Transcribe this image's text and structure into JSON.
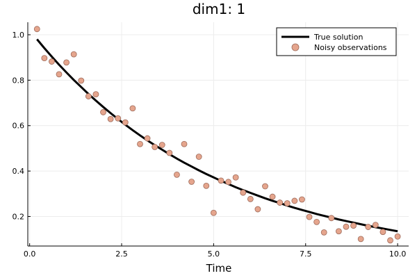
{
  "colors": {
    "line": "#000000",
    "marker_fill": "#e5a58d",
    "marker_stroke": "#9c6a5a",
    "grid": "#ececec",
    "axis": "#000000"
  },
  "chart_data": {
    "type": "scatter",
    "title": "dim1: 1",
    "xlabel": "Time",
    "ylabel": "",
    "xlim": [
      -0.05,
      10.3
    ],
    "ylim": [
      0.07,
      1.055
    ],
    "xticks": [
      0.0,
      2.5,
      5.0,
      7.5,
      10.0
    ],
    "xtick_labels": [
      "0.0",
      "2.5",
      "5.0",
      "7.5",
      "10.0"
    ],
    "yticks": [
      0.2,
      0.4,
      0.6,
      0.8,
      1.0
    ],
    "ytick_labels": [
      "0.2",
      "0.4",
      "0.6",
      "0.8",
      "1.0"
    ],
    "grid": true,
    "legend_position": "top-right",
    "series": [
      {
        "name": "True solution",
        "kind": "line",
        "x": [
          0.2,
          0.4,
          0.6,
          0.8,
          1.0,
          1.2,
          1.4,
          1.6,
          1.8,
          2.0,
          2.2,
          2.4,
          2.6,
          2.8,
          3.0,
          3.2,
          3.4,
          3.6,
          3.8,
          4.0,
          4.2,
          4.4,
          4.6,
          4.8,
          5.0,
          5.2,
          5.4,
          5.6,
          5.8,
          6.0,
          6.2,
          6.4,
          6.6,
          6.8,
          7.0,
          7.2,
          7.4,
          7.6,
          7.8,
          8.0,
          8.2,
          8.4,
          8.6,
          8.8,
          9.0,
          9.2,
          9.4,
          9.6,
          9.8,
          10.0
        ],
        "y": [
          0.98,
          0.941,
          0.904,
          0.868,
          0.834,
          0.801,
          0.77,
          0.739,
          0.71,
          0.682,
          0.655,
          0.629,
          0.604,
          0.58,
          0.557,
          0.535,
          0.514,
          0.494,
          0.474,
          0.455,
          0.437,
          0.42,
          0.403,
          0.387,
          0.372,
          0.357,
          0.343,
          0.329,
          0.316,
          0.304,
          0.292,
          0.28,
          0.269,
          0.259,
          0.248,
          0.238,
          0.229,
          0.22,
          0.211,
          0.203,
          0.195,
          0.187,
          0.18,
          0.173,
          0.166,
          0.159,
          0.153,
          0.147,
          0.141,
          0.135
        ]
      },
      {
        "name": "Noisy observations",
        "kind": "scatter",
        "x": [
          0.2,
          0.4,
          0.6,
          0.8,
          1.0,
          1.2,
          1.4,
          1.6,
          1.8,
          2.0,
          2.2,
          2.4,
          2.6,
          2.8,
          3.0,
          3.2,
          3.4,
          3.6,
          3.8,
          4.0,
          4.2,
          4.4,
          4.6,
          4.8,
          5.0,
          5.2,
          5.4,
          5.6,
          5.8,
          6.0,
          6.2,
          6.4,
          6.6,
          6.8,
          7.0,
          7.2,
          7.4,
          7.6,
          7.8,
          8.0,
          8.2,
          8.4,
          8.6,
          8.8,
          9.0,
          9.2,
          9.4,
          9.6,
          9.8,
          10.0
        ],
        "y": [
          1.025,
          0.897,
          0.882,
          0.826,
          0.878,
          0.914,
          0.798,
          0.729,
          0.738,
          0.659,
          0.629,
          0.632,
          0.614,
          0.676,
          0.519,
          0.544,
          0.506,
          0.515,
          0.48,
          0.384,
          0.519,
          0.353,
          0.463,
          0.335,
          0.216,
          0.358,
          0.352,
          0.372,
          0.305,
          0.277,
          0.232,
          0.333,
          0.287,
          0.261,
          0.258,
          0.269,
          0.275,
          0.198,
          0.176,
          0.13,
          0.193,
          0.135,
          0.155,
          0.16,
          0.101,
          0.154,
          0.163,
          0.132,
          0.095,
          0.112
        ]
      }
    ]
  }
}
